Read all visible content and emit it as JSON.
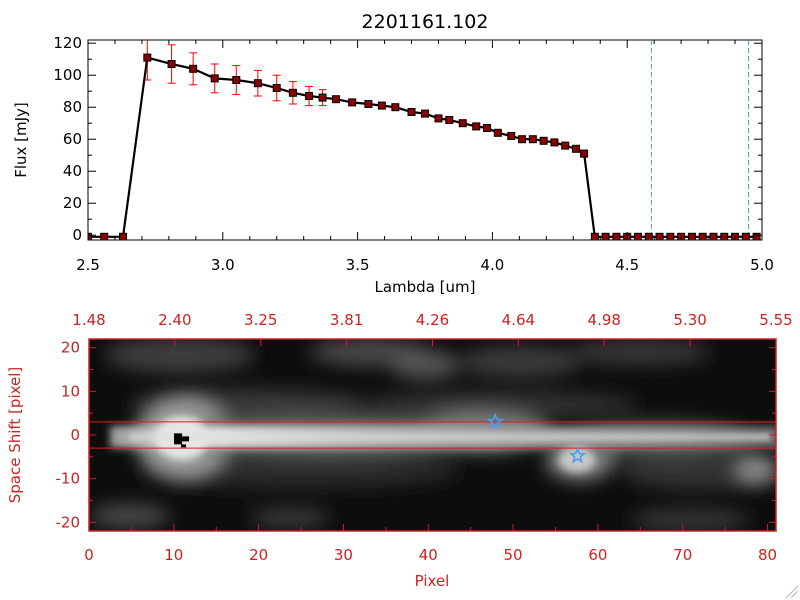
{
  "chart_data": [
    {
      "type": "line",
      "title": "2201161.102",
      "xlabel": "Lambda [um]",
      "ylabel": "Flux [mJy]",
      "xlim": [
        2.5,
        5.0
      ],
      "ylim": [
        -3,
        122
      ],
      "xticks": [
        "2.5",
        "3.0",
        "3.5",
        "4.0",
        "4.5",
        "5.0"
      ],
      "yticks": [
        "0",
        "20",
        "40",
        "60",
        "80",
        "100",
        "120"
      ],
      "grid": false,
      "series": [
        {
          "color": "#000000",
          "marker_color": "#8b0000",
          "errorbar_color": "#ff0000",
          "x": [
            2.5,
            2.56,
            2.63,
            2.72,
            2.81,
            2.89,
            2.97,
            3.05,
            3.13,
            3.2,
            3.26,
            3.32,
            3.37,
            3.42,
            3.48,
            3.54,
            3.59,
            3.64,
            3.7,
            3.75,
            3.8,
            3.84,
            3.89,
            3.94,
            3.98,
            4.02,
            4.07,
            4.11,
            4.15,
            4.19,
            4.23,
            4.27,
            4.31,
            4.34,
            4.38,
            4.42,
            4.46,
            4.5,
            4.54,
            4.58,
            4.62,
            4.66,
            4.7,
            4.74,
            4.78,
            4.82,
            4.86,
            4.9,
            4.94,
            4.98
          ],
          "y": [
            -1,
            -1,
            -1,
            111,
            107,
            104,
            98,
            97,
            95,
            92,
            89,
            87,
            86,
            85,
            83,
            82,
            81,
            80,
            77,
            76,
            73,
            72,
            70,
            68,
            67,
            64,
            62,
            60,
            60,
            59,
            58,
            56,
            54,
            51,
            -1,
            -1,
            -1,
            -1,
            -1,
            -1,
            -1,
            -1,
            -1,
            -1,
            -1,
            -1,
            -1,
            -1,
            -1,
            -1
          ],
          "err": [
            0,
            0,
            0,
            14,
            12,
            10,
            9,
            9,
            8,
            8,
            7,
            6,
            5,
            0,
            0,
            0,
            0,
            0,
            0,
            0,
            0,
            0,
            0,
            0,
            0,
            0,
            0,
            0,
            0,
            0,
            0,
            0,
            0,
            0,
            0,
            0,
            0,
            0,
            0,
            0,
            0,
            0,
            0,
            0,
            0,
            0,
            0,
            0,
            0,
            0
          ]
        }
      ],
      "reference_lines": [
        {
          "axis": "x",
          "value": 4.59,
          "color": "#3fa7c9",
          "style": "dashed"
        },
        {
          "axis": "x",
          "value": 4.95,
          "color": "#3fa7c9",
          "style": "dashed"
        },
        {
          "axis": "y",
          "value": -1,
          "color": "#ff0000",
          "style": "dashed",
          "from": 4.38,
          "to": 5.0
        }
      ]
    },
    {
      "type": "heatmap",
      "xlabel": "Pixel",
      "ylabel": "Space Shift [pixel]",
      "xlim": [
        0,
        81
      ],
      "ylim": [
        -22,
        22
      ],
      "xticks": [
        "0",
        "10",
        "20",
        "30",
        "40",
        "50",
        "60",
        "70",
        "80"
      ],
      "yticks": [
        "-20",
        "-10",
        "0",
        "10",
        "20"
      ],
      "top_axis_ticks": [
        "1.48",
        "2.40",
        "3.25",
        "3.81",
        "4.26",
        "4.64",
        "4.98",
        "5.30",
        "5.55"
      ],
      "colormap": "grayscale",
      "axis_color": "#cc2222",
      "aperture_lines": [
        3,
        -3
      ],
      "markers": [
        {
          "shape": "star",
          "color": "#4b9ef0",
          "x": 47.9,
          "y": 3
        },
        {
          "shape": "star",
          "color": "#4b9ef0",
          "x": 57.6,
          "y": -4.8
        },
        {
          "shape": "square",
          "color": "#000000",
          "x": 10.5,
          "y": -1
        }
      ]
    }
  ]
}
